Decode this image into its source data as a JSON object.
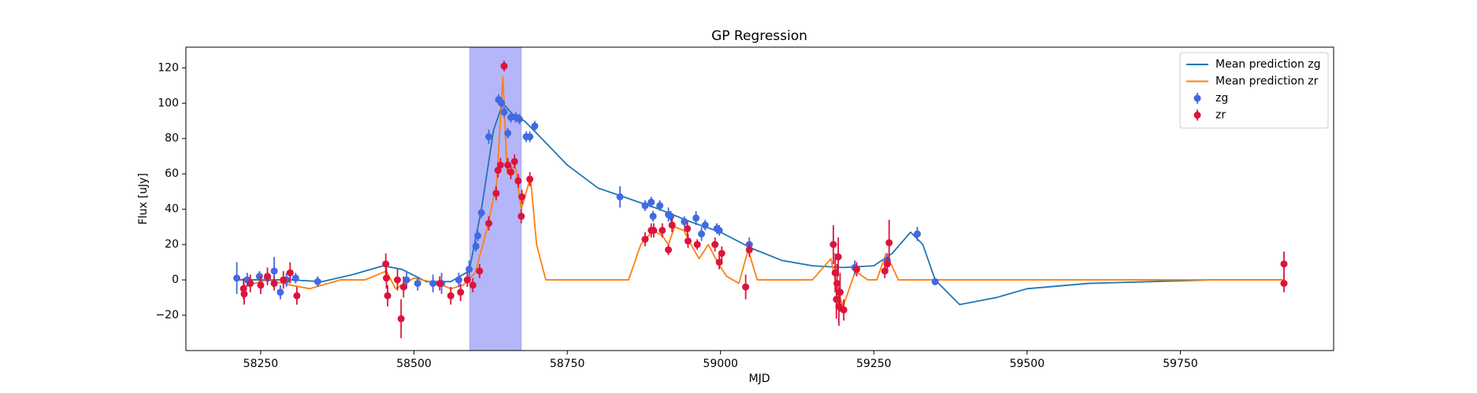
{
  "chart_data": {
    "type": "scatter",
    "title": "GP Regression",
    "x_label": "MJD",
    "y_label": "Flux [uJy]",
    "xlim": [
      58128,
      60000
    ],
    "ylim": [
      -40,
      131.7
    ],
    "xticks": [
      58250,
      58500,
      58750,
      59000,
      59250,
      59500,
      59750
    ],
    "yticks": [
      {
        "value": -20,
        "label": "−20"
      },
      0,
      20,
      40,
      60,
      80,
      100,
      120
    ],
    "shaded_span": [
      58591,
      58675
    ],
    "shade_color": "#a8a8f8",
    "legend": "upper right",
    "series": [
      {
        "name": "Mean prediction zg",
        "type": "line",
        "color": "#1f77b4",
        "x": [
          58211,
          58300,
          58350,
          58400,
          58450,
          58480,
          58520,
          58560,
          58590,
          58610,
          58630,
          58645,
          58660,
          58680,
          58700,
          58750,
          58800,
          58850,
          58900,
          58950,
          59000,
          59050,
          59100,
          59150,
          59200,
          59250,
          59280,
          59310,
          59330,
          59350,
          59390,
          59450,
          59500,
          59600,
          59700,
          59800,
          59919
        ],
        "values": [
          0,
          0,
          -1,
          3,
          8,
          6,
          -1,
          -1,
          5,
          40,
          85,
          100,
          94,
          90,
          83,
          65,
          52,
          46,
          40,
          33,
          27,
          18,
          11,
          8,
          7,
          8,
          15,
          27,
          20,
          0,
          -14,
          -10,
          -5,
          -2,
          -1,
          0,
          0
        ]
      },
      {
        "name": "Mean prediction zr",
        "type": "line",
        "color": "#ff7f0e",
        "x": [
          58220,
          58260,
          58300,
          58330,
          58380,
          58420,
          58455,
          58470,
          58480,
          58500,
          58540,
          58560,
          58580,
          58600,
          58620,
          58635,
          58645,
          58652,
          58665,
          58675,
          58690,
          58700,
          58715,
          58850,
          58870,
          58890,
          58905,
          58915,
          58925,
          58940,
          58955,
          58965,
          58980,
          58995,
          59010,
          59030,
          59045,
          59060,
          59150,
          59180,
          59190,
          59200,
          59220,
          59240,
          59255,
          59270,
          59290,
          59919
        ],
        "values": [
          -4,
          0,
          -3,
          -5,
          0,
          0,
          5,
          -5,
          -3,
          1,
          -2,
          -5,
          -3,
          4,
          30,
          55,
          115,
          60,
          65,
          40,
          58,
          20,
          0,
          0,
          20,
          28,
          25,
          20,
          30,
          28,
          18,
          12,
          20,
          10,
          2,
          -2,
          17,
          0,
          0,
          12,
          -5,
          -15,
          5,
          0,
          0,
          15,
          0,
          0
        ]
      },
      {
        "name": "zg",
        "type": "errorbar",
        "color": "#4169e1",
        "x": [
          58211,
          58228,
          58248,
          58261,
          58272,
          58282,
          58292,
          58307,
          58343,
          58488,
          58506,
          58531,
          58545,
          58573,
          58590,
          58601,
          58604,
          58610,
          58622,
          58638,
          58643,
          58647,
          58653,
          58658,
          58666,
          58672,
          58683,
          58689,
          58697,
          58836,
          58877,
          58887,
          58890,
          58901,
          58915,
          58919,
          58941,
          58960,
          58969,
          58975,
          58994,
          58998,
          59047,
          59219,
          59272,
          59321,
          59350
        ],
        "values": [
          1,
          0,
          2,
          1,
          5,
          -7,
          0,
          1,
          -1,
          0,
          -2,
          -2,
          -2,
          0,
          6,
          19,
          25,
          38,
          81,
          102,
          100,
          95,
          83,
          92,
          92,
          91,
          81,
          81,
          87,
          47,
          42,
          44,
          36,
          42,
          37,
          36,
          33,
          35,
          26,
          31,
          29,
          28,
          20,
          7,
          11,
          26,
          -1
        ],
        "errors": [
          9,
          4,
          3,
          3,
          8,
          4,
          4,
          3,
          3,
          5,
          4,
          5,
          6,
          4,
          5,
          3,
          3,
          3,
          4,
          3,
          3,
          3,
          3,
          3,
          3,
          3,
          3,
          3,
          3,
          6,
          3,
          3,
          3,
          3,
          4,
          3,
          3,
          4,
          4,
          3,
          3,
          3,
          4,
          4,
          4,
          4,
          2
        ]
      },
      {
        "name": "zr",
        "type": "errorbar",
        "color": "#dc143c",
        "x": [
          58222,
          58223,
          58233,
          58250,
          58261,
          58272,
          58287,
          58298,
          58309,
          58454,
          58455,
          58457,
          58473,
          58479,
          58483,
          58542,
          58560,
          58576,
          58587,
          58596,
          58607,
          58622,
          58634,
          58637,
          58641,
          58647,
          58653,
          58658,
          58664,
          58670,
          58676,
          58675,
          58689,
          58877,
          58887,
          58891,
          58905,
          58915,
          58921,
          58946,
          58947,
          58962,
          58991,
          58998,
          59002,
          59041,
          59047,
          59184,
          59187,
          59189,
          59190,
          59192,
          59193,
          59195,
          59201,
          59222,
          59268,
          59272,
          59275,
          59919,
          59919
        ],
        "values": [
          -5,
          -8,
          -2,
          -3,
          2,
          -2,
          0,
          4,
          -9,
          9,
          1,
          -9,
          0,
          -22,
          -4,
          -2,
          -9,
          -7,
          0,
          -3,
          5,
          32,
          49,
          62,
          65,
          121,
          65,
          61,
          67,
          56,
          47,
          36,
          57,
          23,
          28,
          28,
          28,
          17,
          31,
          29,
          22,
          20,
          20,
          10,
          15,
          -4,
          17,
          20,
          4,
          -11,
          -2,
          13,
          -15,
          -7,
          -17,
          6,
          5,
          9,
          21,
          9,
          -2
        ],
        "errors": [
          6,
          6,
          5,
          5,
          5,
          4,
          5,
          6,
          5,
          6,
          6,
          6,
          6,
          11,
          6,
          4,
          5,
          5,
          4,
          4,
          4,
          4,
          4,
          4,
          4,
          3,
          4,
          4,
          4,
          4,
          4,
          4,
          4,
          4,
          4,
          4,
          4,
          3,
          4,
          4,
          4,
          3,
          4,
          4,
          4,
          7,
          4,
          11,
          11,
          11,
          11,
          11,
          11,
          11,
          6,
          4,
          4,
          4,
          13,
          7,
          5
        ]
      }
    ]
  }
}
